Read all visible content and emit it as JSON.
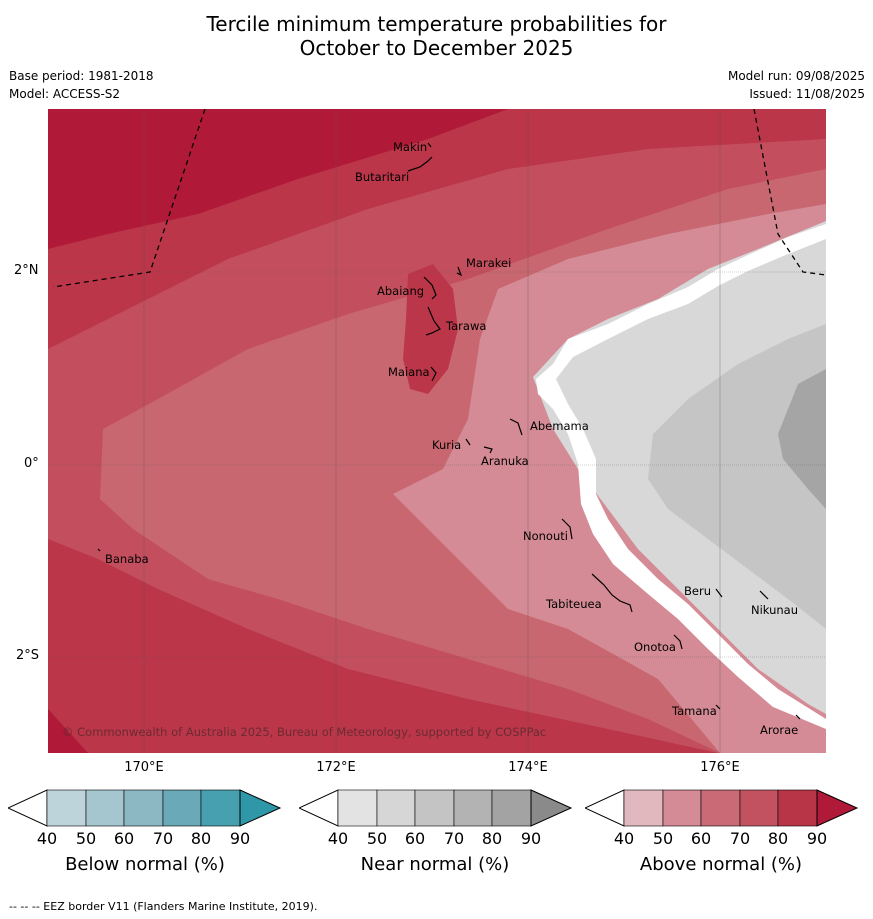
{
  "title_line1": "Tercile minimum temperature probabilities for",
  "title_line2": "October to December 2025",
  "base_period": "Base period: 1981-2018",
  "model": "Model: ACCESS-S2",
  "model_run": "Model run: 09/08/2025",
  "issued": "Issued: 11/08/2025",
  "copyright": "© Commonwealth of Australia 2025, Bureau of Meteorology, supported by COSPPac",
  "footer": "--  --  -- EEZ border V11 (Flanders Marine Institute, 2019).",
  "lat_labels": [
    "2°N",
    "0°",
    "2°S"
  ],
  "lon_labels": [
    "170°E",
    "172°E",
    "174°E",
    "176°E"
  ],
  "places": [
    {
      "name": "Makin"
    },
    {
      "name": "Butaritari"
    },
    {
      "name": "Marakei"
    },
    {
      "name": "Abaiang"
    },
    {
      "name": "Tarawa"
    },
    {
      "name": "Maiana"
    },
    {
      "name": "Abemama"
    },
    {
      "name": "Kuria"
    },
    {
      "name": "Aranuka"
    },
    {
      "name": "Nonouti"
    },
    {
      "name": "Banaba"
    },
    {
      "name": "Beru"
    },
    {
      "name": "Nikunau"
    },
    {
      "name": "Tabiteuea"
    },
    {
      "name": "Onotoa"
    },
    {
      "name": "Tamana"
    },
    {
      "name": "Arorae"
    }
  ],
  "colorbars": [
    {
      "title": "Below normal (%)",
      "ticks": [
        "40",
        "50",
        "60",
        "70",
        "80",
        "90"
      ],
      "colors": [
        "#bdd4db",
        "#a5c6cf",
        "#8bb8c3",
        "#6aa9b7",
        "#47a0b0",
        "#2f97a8"
      ]
    },
    {
      "title": "Near normal (%)",
      "ticks": [
        "40",
        "50",
        "60",
        "70",
        "80",
        "90"
      ],
      "colors": [
        "#e3e3e3",
        "#d6d6d6",
        "#c4c4c4",
        "#b3b3b3",
        "#a3a3a3",
        "#8a8a8a"
      ]
    },
    {
      "title": "Above normal (%)",
      "ticks": [
        "40",
        "50",
        "60",
        "70",
        "80",
        "90"
      ],
      "colors": [
        "#e2b8bf",
        "#d48b95",
        "#c96a76",
        "#c25260",
        "#b83548",
        "#b01a38"
      ]
    }
  ]
}
